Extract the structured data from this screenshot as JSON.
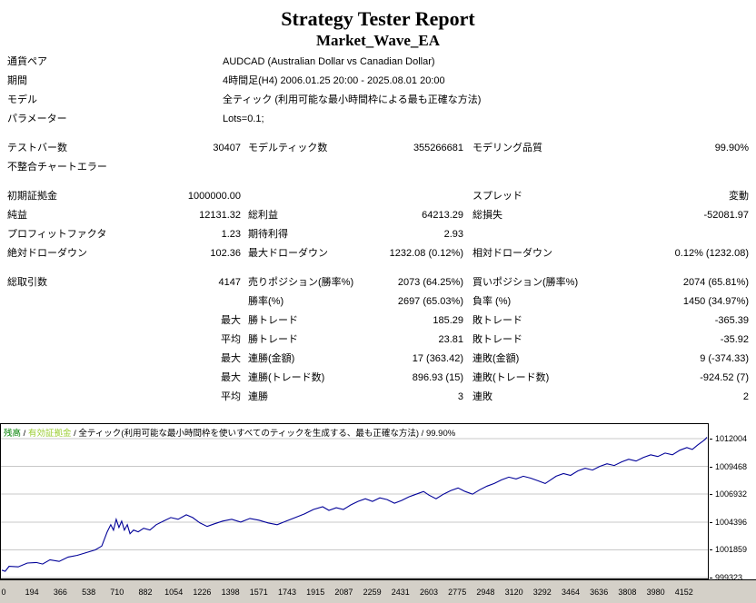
{
  "report": {
    "title": "Strategy Tester Report",
    "subtitle": "Market_Wave_EA"
  },
  "info_rows": [
    {
      "label": "通貨ペア",
      "value": "AUDCAD (Australian Dollar vs Canadian Dollar)"
    },
    {
      "label": "期間",
      "value": "4時間足(H4) 2006.01.25 20:00 - 2025.08.01 20:00"
    },
    {
      "label": "モデル",
      "value": "全ティック (利用可能な最小時間枠による最も正確な方法)"
    },
    {
      "label": "パラメーター",
      "value": "Lots=0.1;"
    }
  ],
  "stat_sections": [
    [
      [
        "テストバー数",
        "30407",
        "モデルティック数",
        "355266681",
        "モデリング品質",
        "99.90%"
      ],
      [
        "不整合チャートエラー",
        "",
        "",
        "",
        "",
        ""
      ]
    ],
    [
      [
        "初期証拠金",
        "1000000.00",
        "",
        "",
        "スプレッド",
        "変動"
      ],
      [
        "純益",
        "12131.32",
        "総利益",
        "64213.29",
        "総損失",
        "-52081.97"
      ],
      [
        "プロフィットファクタ",
        "1.23",
        "期待利得",
        "2.93",
        "",
        ""
      ],
      [
        "絶対ドローダウン",
        "102.36",
        "最大ドローダウン",
        "1232.08 (0.12%)",
        "相対ドローダウン",
        "0.12% (1232.08)"
      ]
    ],
    [
      [
        "総取引数",
        "4147",
        "売りポジション(勝率%)",
        "2073 (64.25%)",
        "買いポジション(勝率%)",
        "2074 (65.81%)"
      ],
      [
        "",
        "",
        "勝率(%)",
        "2697 (65.03%)",
        "負率 (%)",
        "1450 (34.97%)"
      ],
      [
        "",
        "最大",
        "勝トレード",
        "185.29",
        "敗トレード",
        "-365.39"
      ],
      [
        "",
        "平均",
        "勝トレード",
        "23.81",
        "敗トレード",
        "-35.92"
      ],
      [
        "",
        "最大",
        "連勝(金額)",
        "17 (363.42)",
        "連敗(金額)",
        "9 (-374.33)"
      ],
      [
        "",
        "最大",
        "連勝(トレード数)",
        "896.93 (15)",
        "連敗(トレード数)",
        "-924.52 (7)"
      ],
      [
        "",
        "平均",
        "連勝",
        "3",
        "連敗",
        "2"
      ]
    ]
  ],
  "chart_data": {
    "type": "line",
    "legend": {
      "balance_label": "残高",
      "equity_label": "有効証拠金",
      "model_text": "全ティック(利用可能な最小時間枠を使いすべてのティックを生成する、最も正確な方法)",
      "quality_text": "99.90%",
      "separator": " / "
    },
    "xlim": [
      0,
      4147
    ],
    "ylim": [
      999240,
      1013330
    ],
    "grid": true,
    "xticks": [
      0,
      194,
      366,
      538,
      710,
      882,
      1054,
      1226,
      1398,
      1571,
      1743,
      1915,
      2087,
      2259,
      2431,
      2603,
      2775,
      2948,
      3120,
      3292,
      3464,
      3636,
      3808,
      3980,
      4152
    ],
    "yticks": [
      1012004,
      1009468,
      1006932,
      1004396,
      1001859,
      999323
    ],
    "colors": {
      "balance_text": "#008000",
      "equity_text": "#9ACD32",
      "line": "#000098",
      "grid": "#C8C8C8",
      "axis_strip_bg": "#D4D0C8"
    },
    "series": [
      {
        "name": "残高",
        "color": "#000098",
        "points": [
          [
            0,
            1000000
          ],
          [
            20,
            999898
          ],
          [
            43,
            1000350
          ],
          [
            96,
            1000300
          ],
          [
            150,
            1000650
          ],
          [
            203,
            1000700
          ],
          [
            240,
            1000560
          ],
          [
            283,
            1000950
          ],
          [
            337,
            1000800
          ],
          [
            390,
            1001200
          ],
          [
            444,
            1001350
          ],
          [
            497,
            1001600
          ],
          [
            550,
            1001850
          ],
          [
            588,
            1002200
          ],
          [
            620,
            1003500
          ],
          [
            641,
            1004150
          ],
          [
            657,
            1003650
          ],
          [
            673,
            1004640
          ],
          [
            689,
            1003900
          ],
          [
            705,
            1004480
          ],
          [
            721,
            1003660
          ],
          [
            738,
            1004150
          ],
          [
            754,
            1003330
          ],
          [
            775,
            1003660
          ],
          [
            802,
            1003500
          ],
          [
            834,
            1003820
          ],
          [
            871,
            1003660
          ],
          [
            908,
            1004150
          ],
          [
            951,
            1004480
          ],
          [
            994,
            1004800
          ],
          [
            1037,
            1004640
          ],
          [
            1085,
            1005050
          ],
          [
            1122,
            1004800
          ],
          [
            1165,
            1004310
          ],
          [
            1208,
            1003990
          ],
          [
            1250,
            1004230
          ],
          [
            1299,
            1004480
          ],
          [
            1352,
            1004640
          ],
          [
            1405,
            1004390
          ],
          [
            1459,
            1004720
          ],
          [
            1512,
            1004560
          ],
          [
            1566,
            1004310
          ],
          [
            1619,
            1004150
          ],
          [
            1673,
            1004480
          ],
          [
            1726,
            1004800
          ],
          [
            1780,
            1005130
          ],
          [
            1833,
            1005540
          ],
          [
            1887,
            1005790
          ],
          [
            1924,
            1005460
          ],
          [
            1967,
            1005700
          ],
          [
            2009,
            1005540
          ],
          [
            2052,
            1005950
          ],
          [
            2095,
            1006280
          ],
          [
            2138,
            1006520
          ],
          [
            2180,
            1006280
          ],
          [
            2223,
            1006600
          ],
          [
            2266,
            1006440
          ],
          [
            2309,
            1006110
          ],
          [
            2351,
            1006360
          ],
          [
            2394,
            1006690
          ],
          [
            2437,
            1006930
          ],
          [
            2480,
            1007180
          ],
          [
            2512,
            1006850
          ],
          [
            2554,
            1006520
          ],
          [
            2597,
            1006930
          ],
          [
            2640,
            1007260
          ],
          [
            2683,
            1007500
          ],
          [
            2725,
            1007180
          ],
          [
            2768,
            1006930
          ],
          [
            2811,
            1007340
          ],
          [
            2854,
            1007670
          ],
          [
            2896,
            1007910
          ],
          [
            2939,
            1008240
          ],
          [
            2982,
            1008490
          ],
          [
            3025,
            1008320
          ],
          [
            3067,
            1008570
          ],
          [
            3110,
            1008400
          ],
          [
            3153,
            1008160
          ],
          [
            3196,
            1007910
          ],
          [
            3228,
            1008240
          ],
          [
            3260,
            1008570
          ],
          [
            3303,
            1008810
          ],
          [
            3345,
            1008650
          ],
          [
            3388,
            1009060
          ],
          [
            3431,
            1009300
          ],
          [
            3474,
            1009140
          ],
          [
            3516,
            1009470
          ],
          [
            3559,
            1009710
          ],
          [
            3602,
            1009550
          ],
          [
            3645,
            1009880
          ],
          [
            3687,
            1010120
          ],
          [
            3730,
            1009960
          ],
          [
            3773,
            1010290
          ],
          [
            3816,
            1010530
          ],
          [
            3858,
            1010370
          ],
          [
            3901,
            1010690
          ],
          [
            3944,
            1010530
          ],
          [
            3987,
            1010940
          ],
          [
            4029,
            1011190
          ],
          [
            4061,
            1011020
          ],
          [
            4093,
            1011430
          ],
          [
            4115,
            1011680
          ],
          [
            4136,
            1011920
          ],
          [
            4147,
            1012131
          ]
        ]
      }
    ]
  }
}
